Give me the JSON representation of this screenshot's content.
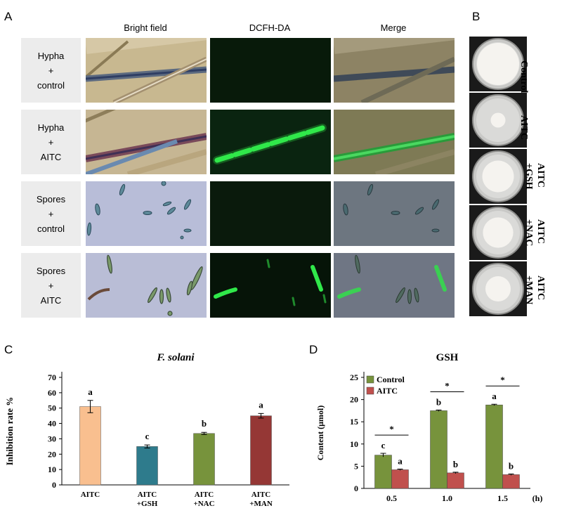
{
  "panelA": {
    "letter": "A",
    "columns": [
      "Bright field",
      "DCFH-DA",
      "Merge"
    ],
    "rows": [
      "Hypha\n+\ncontrol",
      "Hypha\n+\nAITC",
      "Spores\n+\ncontrol",
      "Spores\n+\nAITC"
    ]
  },
  "panelB": {
    "letter": "B",
    "plates": [
      "Control",
      "AITC",
      "AITC\n+GSH",
      "AITC\n+NAC",
      "AITC\n+MAN"
    ],
    "colony_relative_size": [
      1.0,
      0.35,
      0.75,
      0.72,
      0.6
    ]
  },
  "panelC": {
    "letter": "C"
  },
  "panelD": {
    "letter": "D"
  },
  "chart_data": [
    {
      "type": "bar",
      "title": "F. solani",
      "ylabel": "Inhibition rate %",
      "xlabel": "",
      "ylim": [
        0,
        70
      ],
      "yticks": [
        0,
        10,
        20,
        30,
        40,
        50,
        60,
        70
      ],
      "categories": [
        "AITC",
        "AITC\n+GSH",
        "AITC\n+NAC",
        "AITC\n+MAN"
      ],
      "values": [
        51,
        25,
        33.5,
        45
      ],
      "errors": [
        4,
        1,
        0.7,
        1.5
      ],
      "letters": [
        "a",
        "c",
        "b",
        "a"
      ],
      "colors": [
        "#f9bf8f",
        "#2e7b8c",
        "#77933c",
        "#953735"
      ]
    },
    {
      "type": "bar",
      "title": "GSH",
      "ylabel": "Content (μmol)",
      "xlabel": "(h)",
      "ylim": [
        0,
        25
      ],
      "yticks": [
        0,
        5,
        10,
        15,
        20,
        25
      ],
      "categories": [
        "0.5",
        "1.0",
        "1.5"
      ],
      "legend_position": "top-left",
      "series": [
        {
          "name": "Control",
          "color": "#77933c",
          "values": [
            7.5,
            17.5,
            18.8
          ],
          "errors": [
            0.4,
            0.15,
            0.15
          ],
          "letters": [
            "c",
            "b",
            "a"
          ]
        },
        {
          "name": "AITC",
          "color": "#c0504d",
          "values": [
            4.2,
            3.5,
            3.1
          ],
          "errors": [
            0.15,
            0.15,
            0.15
          ],
          "letters": [
            "a",
            "b",
            "b"
          ]
        }
      ],
      "significance": [
        "*",
        "*",
        "*"
      ]
    }
  ]
}
